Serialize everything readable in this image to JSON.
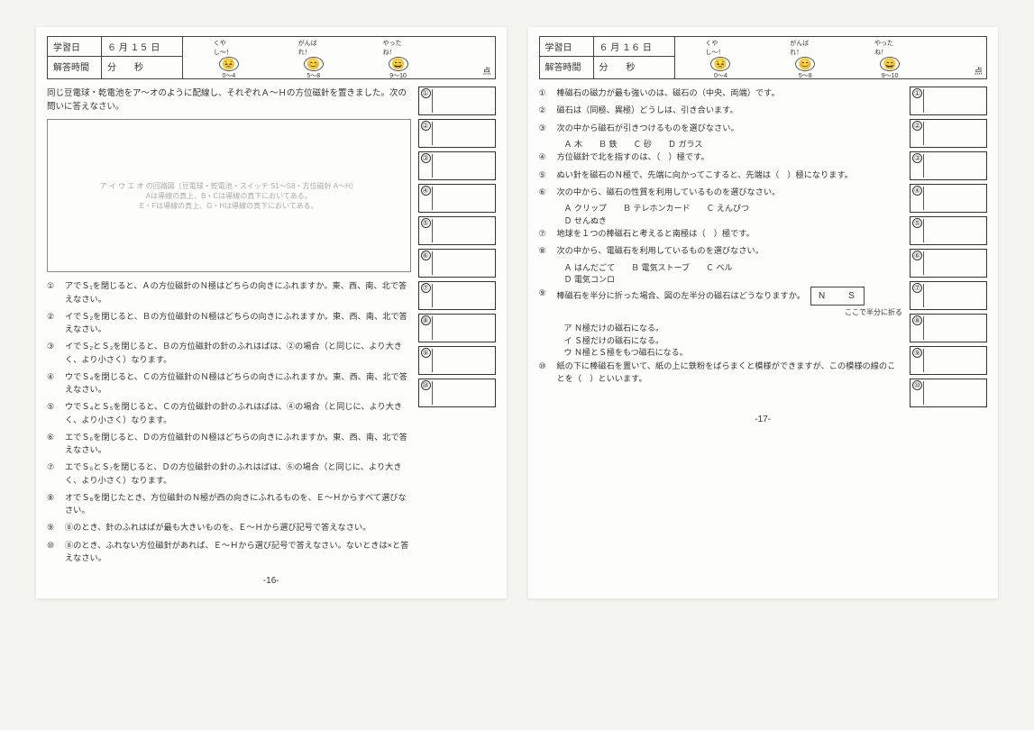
{
  "left": {
    "hdr": {
      "study_day_label": "学習日",
      "study_day_value": "６ 月 １５ 日",
      "answer_time_label": "解答時間",
      "answer_time_value": "分　　秒",
      "mascots": [
        {
          "label": "くやし〜！",
          "range": "0〜4"
        },
        {
          "label": "がんばれ！",
          "range": "5〜8"
        },
        {
          "label": "やったね！",
          "range": "9〜10"
        }
      ],
      "score_suffix": "点"
    },
    "intro": "同じ豆電球・乾電池をア〜オのように配線し、それぞれＡ〜Ｈの方位磁針を置きました。次の問いに答えなさい。",
    "diagram_note": "ア イ ウ エ オ の回路図（豆電球・乾電池・スイッチ S1〜S8・方位磁針 A〜H）\nAは導線の真上、B・Cは導線の真下においてある。\nE・Fは導線の真上、G・Hは導線の真下においてある。",
    "questions": [
      {
        "n": "①",
        "t": "アでＳ₁を閉じると、Ａの方位磁針のＮ極はどちらの向きにふれますか。東、西、南、北で答えなさい。"
      },
      {
        "n": "②",
        "t": "イでＳ₂を閉じると、Ｂの方位磁針のＮ極はどちらの向きにふれますか。東、西、南、北で答えなさい。"
      },
      {
        "n": "③",
        "t": "イでＳ₂とＳ₃を閉じると、Ｂの方位磁針の針のふれはばは、②の場合（と同じに、より大きく、より小さく）なります。"
      },
      {
        "n": "④",
        "t": "ウでＳ₄を閉じると、Ｃの方位磁針のＮ極はどちらの向きにふれますか。東、西、南、北で答えなさい。"
      },
      {
        "n": "⑤",
        "t": "ウでＳ₄とＳ₅を閉じると、Ｃの方位磁針の針のふれはばは、④の場合（と同じに、より大きく、より小さく）なります。"
      },
      {
        "n": "⑥",
        "t": "エでＳ₆を閉じると、Ｄの方位磁針のＮ極はどちらの向きにふれますか。東、西、南、北で答えなさい。"
      },
      {
        "n": "⑦",
        "t": "エでＳ₆とＳ₇を閉じると、Ｄの方位磁針の針のふれはばは、⑥の場合（と同じに、より大きく、より小さく）なります。"
      },
      {
        "n": "⑧",
        "t": "オでＳ₈を閉じたとき、方位磁針のＮ極が西の向きにふれるものを、Ｅ〜Ｈからすべて選びなさい。"
      },
      {
        "n": "⑨",
        "t": "⑧のとき、針のふれはばが最も大きいものを、Ｅ〜Ｈから選び記号で答えなさい。"
      },
      {
        "n": "⑩",
        "t": "⑧のとき、ふれない方位磁針があれば、Ｅ〜Ｈから選び記号で答えなさい。ないときは×と答えなさい。"
      }
    ],
    "answer_count": 10,
    "page_num": "-16-"
  },
  "right": {
    "hdr": {
      "study_day_label": "学習日",
      "study_day_value": "６ 月 １６ 日",
      "answer_time_label": "解答時間",
      "answer_time_value": "分　　秒",
      "mascots": [
        {
          "label": "くやし〜！",
          "range": "0〜4"
        },
        {
          "label": "がんばれ！",
          "range": "5〜8"
        },
        {
          "label": "やったね！",
          "range": "9〜10"
        }
      ],
      "score_suffix": "点"
    },
    "questions": [
      {
        "n": "①",
        "t": "棒磁石の磁力が最も強いのは、磁石の（中央、両端）です。"
      },
      {
        "n": "②",
        "t": "磁石は（同極、異極）どうしは、引き合います。"
      },
      {
        "n": "③",
        "t": "次の中から磁石が引きつけるものを選びなさい。",
        "opts": "Ａ 木　　Ｂ 鉄　　Ｃ 砂　　Ｄ ガラス"
      },
      {
        "n": "④",
        "t": "方位磁針で北を指すのは、（　）極です。"
      },
      {
        "n": "⑤",
        "t": "ぬい針を磁石のＮ極で、先端に向かってこすると、先端は（　）極になります。"
      },
      {
        "n": "⑥",
        "t": "次の中から、磁石の性質を利用しているものを選びなさい。",
        "opts": "Ａ クリップ　　Ｂ テレホンカード　　Ｃ えんぴつ\nＤ せんぬき"
      },
      {
        "n": "⑦",
        "t": "地球を１つの棒磁石と考えると南極は（　）極です。"
      },
      {
        "n": "⑧",
        "t": "次の中から、電磁石を利用しているものを選びなさい。",
        "opts": "Ａ はんだごて　　Ｂ 電気ストーブ　　Ｃ ベル\nＤ 電気コンロ"
      },
      {
        "n": "⑨",
        "t": "棒磁石を半分に折った場合、図の左半分の磁石はどうなりますか。",
        "opts": "ア Ｎ極だけの磁石になる。\nイ Ｓ極だけの磁石になる。\nウ Ｎ極とＳ極をもつ磁石になる。",
        "diagram": "N　　S",
        "diagram_note": "ここで半分に折る"
      },
      {
        "n": "⑩",
        "t": "紙の下に棒磁石を置いて、紙の上に鉄粉をばらまくと模様ができますが、この模様の線のことを（　）といいます。"
      }
    ],
    "answer_count": 10,
    "page_num": "-17-"
  },
  "circled": [
    "①",
    "②",
    "③",
    "④",
    "⑤",
    "⑥",
    "⑦",
    "⑧",
    "⑨",
    "⑩"
  ]
}
